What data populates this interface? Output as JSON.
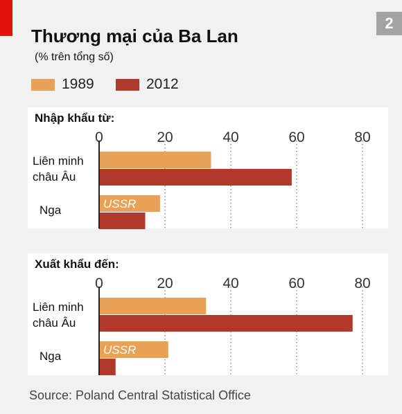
{
  "badge": "2",
  "title": "Thương mại của Ba Lan",
  "subtitle": "(% trên tổng số)",
  "source": "Source: Poland Central Statistical Office",
  "colors": {
    "y1989": "#e9a157",
    "y2012": "#b0392b",
    "accent": "#e3120b"
  },
  "legend": [
    {
      "label": "1989",
      "color": "#e9a157"
    },
    {
      "label": "2012",
      "color": "#b0392b"
    }
  ],
  "chart_data": [
    {
      "type": "bar",
      "orientation": "horizontal",
      "title": "Nhập khẩu từ:",
      "xlim": [
        0,
        80
      ],
      "ticks": [
        "0",
        "20",
        "40",
        "60",
        "80"
      ],
      "categories": [
        {
          "label_lines": [
            "Liên minh",
            "châu Âu"
          ],
          "inner_label": ""
        },
        {
          "label_lines": [
            "Nga"
          ],
          "inner_label": "USSR"
        }
      ],
      "series": [
        {
          "name": "1989",
          "values": [
            34,
            18.5
          ]
        },
        {
          "name": "2012",
          "values": [
            58.5,
            14
          ]
        }
      ]
    },
    {
      "type": "bar",
      "orientation": "horizontal",
      "title": "Xuất khẩu đến:",
      "xlim": [
        0,
        80
      ],
      "ticks": [
        "0",
        "20",
        "40",
        "60",
        "80"
      ],
      "categories": [
        {
          "label_lines": [
            "Liên minh",
            "châu Âu"
          ],
          "inner_label": ""
        },
        {
          "label_lines": [
            "Nga"
          ],
          "inner_label": "USSR"
        }
      ],
      "series": [
        {
          "name": "1989",
          "values": [
            32.5,
            21
          ]
        },
        {
          "name": "2012",
          "values": [
            77,
            5
          ]
        }
      ]
    }
  ]
}
